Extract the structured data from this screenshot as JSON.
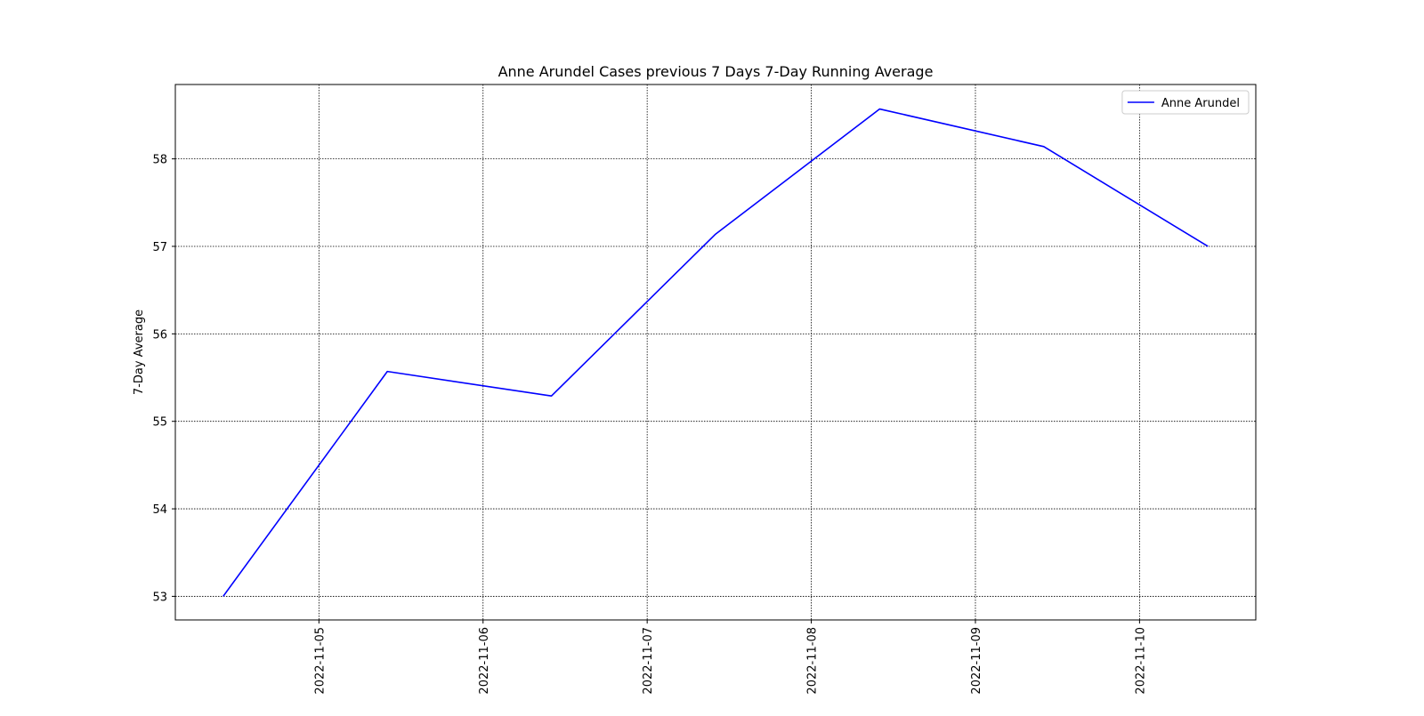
{
  "chart_data": {
    "type": "line",
    "title": "Anne Arundel Cases previous 7 Days 7-Day Running Average",
    "xlabel": "",
    "ylabel": "7-Day Average",
    "x": [
      "2022-11-04T10:00",
      "2022-11-05T10:00",
      "2022-11-06T10:00",
      "2022-11-07T10:00",
      "2022-11-08T10:00",
      "2022-11-09T10:00",
      "2022-11-10T10:00"
    ],
    "series": [
      {
        "name": "Anne Arundel",
        "color": "#0000ff",
        "values": [
          53.0,
          55.57,
          55.29,
          57.14,
          58.57,
          58.14,
          57.0
        ]
      }
    ],
    "x_ticks": [
      "2022-11-05",
      "2022-11-06",
      "2022-11-07",
      "2022-11-08",
      "2022-11-09",
      "2022-11-10"
    ],
    "y_ticks": [
      53,
      54,
      55,
      56,
      57,
      58
    ],
    "xlim": [
      "2022-11-04T03:00",
      "2022-11-10T17:00"
    ],
    "ylim": [
      52.73,
      58.85
    ],
    "grid": true,
    "legend_position": "top-right"
  }
}
